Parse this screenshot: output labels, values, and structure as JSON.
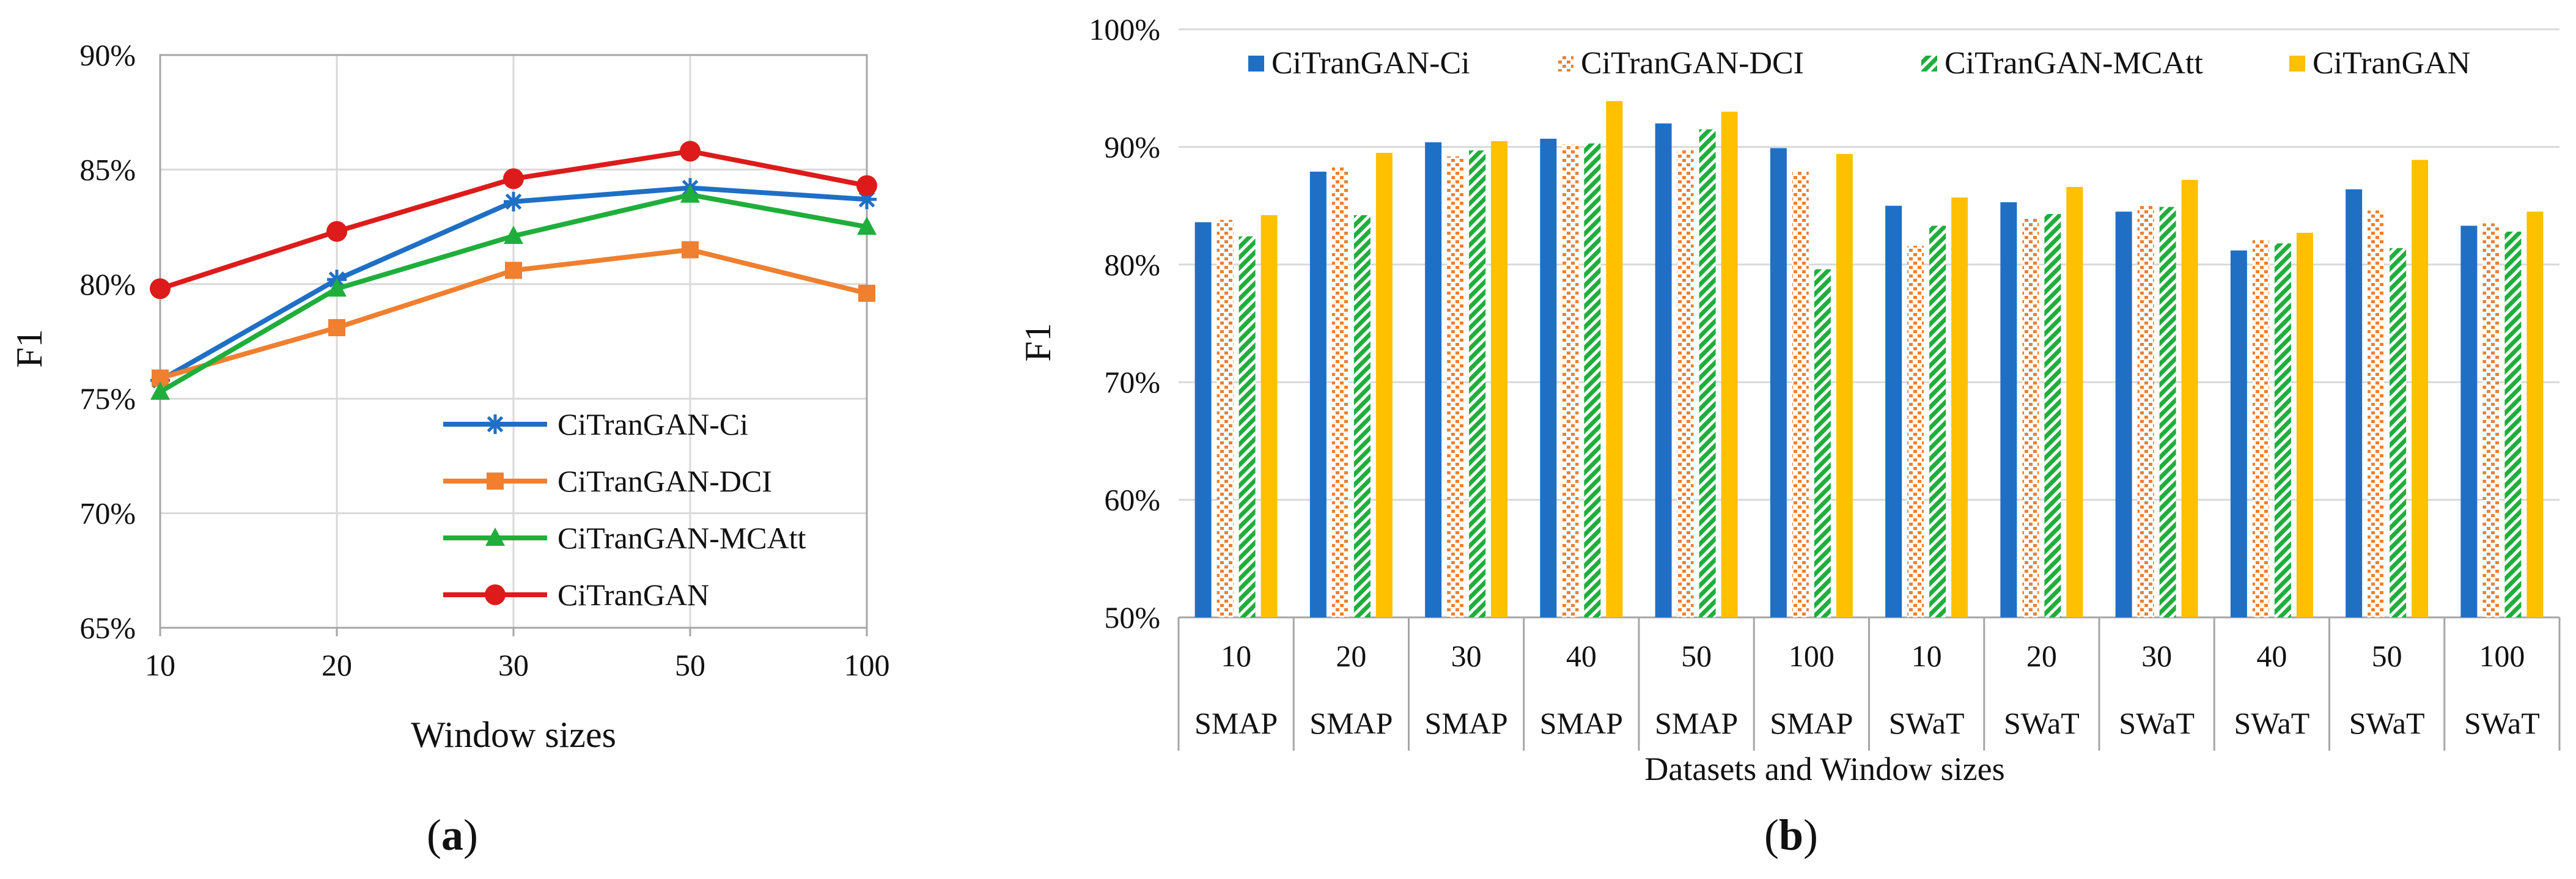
{
  "chart_data": [
    {
      "type": "line",
      "panel_label": "a",
      "title": "",
      "xlabel": "Window sizes",
      "ylabel": "F1",
      "categories": [
        "10",
        "20",
        "30",
        "50",
        "100"
      ],
      "ylim": [
        65,
        90
      ],
      "yticks": [
        "65%",
        "70%",
        "75%",
        "80%",
        "85%",
        "90%"
      ],
      "grid": true,
      "legend_position": "bottom-right",
      "series": [
        {
          "name": "CiTranGAN-Ci",
          "color": "#1f6fc5",
          "marker": "asterisk",
          "values": [
            75.8,
            80.2,
            83.6,
            84.2,
            83.7
          ]
        },
        {
          "name": "CiTranGAN-DCI",
          "color": "#f07f2f",
          "marker": "square",
          "values": [
            75.9,
            78.1,
            80.6,
            81.5,
            79.6
          ]
        },
        {
          "name": "CiTranGAN-MCAtt",
          "color": "#1fae3b",
          "marker": "triangle",
          "values": [
            75.3,
            79.8,
            82.1,
            83.9,
            82.5
          ]
        },
        {
          "name": "CiTranGAN",
          "color": "#dd1b1b",
          "marker": "circle",
          "values": [
            79.8,
            82.3,
            84.6,
            85.8,
            84.3
          ]
        }
      ]
    },
    {
      "type": "bar",
      "panel_label": "b",
      "title": "",
      "xlabel": "Datasets and Window sizes",
      "ylabel": "F1",
      "categories": [
        "10",
        "20",
        "30",
        "40",
        "50",
        "100",
        "10",
        "20",
        "30",
        "40",
        "50",
        "100"
      ],
      "groups": [
        "SMAP",
        "SMAP",
        "SMAP",
        "SMAP",
        "SMAP",
        "SMAP",
        "SWaT",
        "SWaT",
        "SWaT",
        "SWaT",
        "SWaT",
        "SWaT"
      ],
      "ylim": [
        50,
        100
      ],
      "yticks": [
        "50%",
        "60%",
        "70%",
        "80%",
        "90%",
        "100%"
      ],
      "grid": true,
      "legend_position": "top",
      "series": [
        {
          "name": "CiTranGAN-Ci",
          "color": "#1f6fc5",
          "pattern": "solid",
          "values": [
            83.6,
            87.9,
            90.4,
            90.7,
            92.0,
            89.9,
            85.0,
            85.3,
            84.5,
            81.2,
            86.4,
            83.3
          ]
        },
        {
          "name": "CiTranGAN-DCI",
          "color": "#f07f2f",
          "pattern": "dots",
          "values": [
            83.8,
            88.3,
            89.2,
            90.2,
            89.8,
            88.0,
            81.6,
            83.9,
            85.0,
            82.1,
            84.6,
            83.5
          ]
        },
        {
          "name": "CiTranGAN-MCAtt",
          "color": "#1fae3b",
          "pattern": "diagonal",
          "values": [
            82.4,
            84.2,
            89.7,
            90.3,
            91.5,
            79.6,
            83.3,
            84.3,
            84.9,
            81.8,
            81.4,
            82.8
          ]
        },
        {
          "name": "CiTranGAN",
          "color": "#ffc000",
          "pattern": "solid",
          "values": [
            84.2,
            89.5,
            90.5,
            93.9,
            93.0,
            89.4,
            85.7,
            86.6,
            87.2,
            82.7,
            88.9,
            84.5
          ]
        }
      ]
    }
  ]
}
